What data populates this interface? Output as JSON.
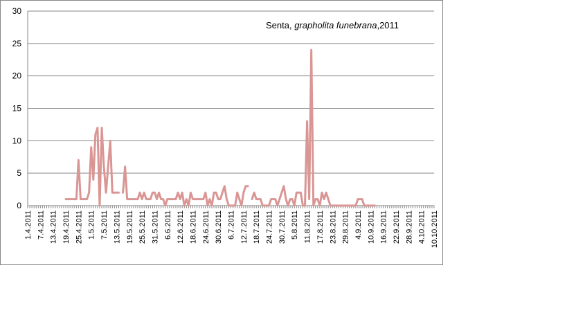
{
  "chart_data": {
    "type": "line",
    "title_parts": [
      "Senta, ",
      "grapholita funebrana",
      ",2011"
    ],
    "ylim": [
      0,
      30
    ],
    "yticks": [
      0,
      5,
      10,
      15,
      20,
      25,
      30
    ],
    "xlim": [
      "1.4.2011",
      "10.10.2011"
    ],
    "xtick_labels": [
      "1.4.2011",
      "7.4.2011",
      "13.4.2011",
      "19.4.2011",
      "25.4.2011",
      "1.5.2011",
      "7.5.2011",
      "13.5.2011",
      "19.5.2011",
      "25.5.2011",
      "31.5.2011",
      "6.6.2011",
      "12.6.2011",
      "18.6.2011",
      "24.6.2011",
      "30.6.2011",
      "6.7.2011",
      "12.7.2011",
      "18.7.2011",
      "24.7.2011",
      "30.7.2011",
      "5.8.2011",
      "11.8.2011",
      "17.8.2011",
      "23.8.2011",
      "29.8.2011",
      "4.9.2011",
      "10.9.2011",
      "16.9.2011",
      "22.9.2011",
      "28.9.2011",
      "4.10.2011",
      "10.10.2011"
    ],
    "grid": true,
    "legend": "none",
    "series": [
      {
        "color": "#d99694",
        "points": [
          [
            "19.4.2011",
            1
          ],
          [
            "20.4.2011",
            1
          ],
          [
            "21.4.2011",
            1
          ],
          [
            "22.4.2011",
            1
          ],
          [
            "23.4.2011",
            1
          ],
          [
            "24.4.2011",
            1
          ],
          [
            "25.4.2011",
            7
          ],
          [
            "26.4.2011",
            1
          ],
          [
            "27.4.2011",
            1
          ],
          [
            "28.4.2011",
            1
          ],
          [
            "29.4.2011",
            1
          ],
          [
            "30.4.2011",
            2
          ],
          [
            "1.5.2011",
            9
          ],
          [
            "2.5.2011",
            4
          ],
          [
            "3.5.2011",
            11
          ],
          [
            "4.5.2011",
            12
          ],
          [
            "5.5.2011",
            0
          ],
          [
            "6.5.2011",
            12
          ],
          [
            "7.5.2011",
            6
          ],
          [
            "8.5.2011",
            2
          ],
          [
            "9.5.2011",
            6
          ],
          [
            "10.5.2011",
            10
          ],
          [
            "11.5.2011",
            2
          ],
          [
            "12.5.2011",
            2
          ],
          [
            "13.5.2011",
            2
          ],
          [
            "14.5.2011",
            2
          ],
          [
            "16.5.2011",
            2
          ],
          [
            "17.5.2011",
            6
          ],
          [
            "18.5.2011",
            1
          ],
          [
            "19.5.2011",
            1
          ],
          [
            "20.5.2011",
            1
          ],
          [
            "21.5.2011",
            1
          ],
          [
            "22.5.2011",
            1
          ],
          [
            "23.5.2011",
            1
          ],
          [
            "24.5.2011",
            2
          ],
          [
            "25.5.2011",
            1
          ],
          [
            "26.5.2011",
            2
          ],
          [
            "27.5.2011",
            1
          ],
          [
            "28.5.2011",
            1
          ],
          [
            "29.5.2011",
            1
          ],
          [
            "30.5.2011",
            2
          ],
          [
            "31.5.2011",
            2
          ],
          [
            "1.6.2011",
            1
          ],
          [
            "2.6.2011",
            2
          ],
          [
            "3.6.2011",
            1
          ],
          [
            "4.6.2011",
            1
          ],
          [
            "5.6.2011",
            0
          ],
          [
            "6.6.2011",
            1
          ],
          [
            "7.6.2011",
            1
          ],
          [
            "8.6.2011",
            1
          ],
          [
            "9.6.2011",
            1
          ],
          [
            "10.6.2011",
            1
          ],
          [
            "11.6.2011",
            2
          ],
          [
            "12.6.2011",
            1
          ],
          [
            "13.6.2011",
            2
          ],
          [
            "14.6.2011",
            0
          ],
          [
            "15.6.2011",
            1
          ],
          [
            "16.6.2011",
            0
          ],
          [
            "17.6.2011",
            2
          ],
          [
            "18.6.2011",
            1
          ],
          [
            "19.6.2011",
            1
          ],
          [
            "20.6.2011",
            1
          ],
          [
            "21.6.2011",
            1
          ],
          [
            "22.6.2011",
            1
          ],
          [
            "23.6.2011",
            1
          ],
          [
            "24.6.2011",
            2
          ],
          [
            "25.6.2011",
            0
          ],
          [
            "26.6.2011",
            1
          ],
          [
            "27.6.2011",
            0
          ],
          [
            "28.6.2011",
            2
          ],
          [
            "29.6.2011",
            2
          ],
          [
            "30.6.2011",
            1
          ],
          [
            "1.7.2011",
            1
          ],
          [
            "2.7.2011",
            2
          ],
          [
            "3.7.2011",
            3
          ],
          [
            "4.7.2011",
            1
          ],
          [
            "5.7.2011",
            0
          ],
          [
            "6.7.2011",
            0
          ],
          [
            "7.7.2011",
            0
          ],
          [
            "8.7.2011",
            0
          ],
          [
            "9.7.2011",
            2
          ],
          [
            "10.7.2011",
            1
          ],
          [
            "11.7.2011",
            0
          ],
          [
            "12.7.2011",
            2
          ],
          [
            "13.7.2011",
            3
          ],
          [
            "14.7.2011",
            3
          ],
          [
            "16.7.2011",
            1
          ],
          [
            "17.7.2011",
            2
          ],
          [
            "18.7.2011",
            1
          ],
          [
            "19.7.2011",
            1
          ],
          [
            "20.7.2011",
            1
          ],
          [
            "21.7.2011",
            0
          ],
          [
            "22.7.2011",
            0
          ],
          [
            "23.7.2011",
            0
          ],
          [
            "24.7.2011",
            0
          ],
          [
            "25.7.2011",
            1
          ],
          [
            "26.7.2011",
            1
          ],
          [
            "27.7.2011",
            1
          ],
          [
            "28.7.2011",
            0
          ],
          [
            "29.7.2011",
            1
          ],
          [
            "30.7.2011",
            2
          ],
          [
            "31.7.2011",
            3
          ],
          [
            "1.8.2011",
            1
          ],
          [
            "2.8.2011",
            0
          ],
          [
            "3.8.2011",
            1
          ],
          [
            "4.8.2011",
            1
          ],
          [
            "5.8.2011",
            0
          ],
          [
            "6.8.2011",
            2
          ],
          [
            "7.8.2011",
            2
          ],
          [
            "8.8.2011",
            2
          ],
          [
            "9.8.2011",
            0
          ],
          [
            "10.8.2011",
            0
          ],
          [
            "11.8.2011",
            13
          ],
          [
            "12.8.2011",
            1
          ],
          [
            "13.8.2011",
            24
          ],
          [
            "14.8.2011",
            0
          ],
          [
            "15.8.2011",
            1
          ],
          [
            "16.8.2011",
            1
          ],
          [
            "17.8.2011",
            0
          ],
          [
            "18.8.2011",
            2
          ],
          [
            "19.8.2011",
            1
          ],
          [
            "20.8.2011",
            2
          ],
          [
            "21.8.2011",
            1
          ],
          [
            "22.8.2011",
            0
          ],
          [
            "23.8.2011",
            0
          ],
          [
            "24.8.2011",
            0
          ],
          [
            "25.8.2011",
            0
          ],
          [
            "26.8.2011",
            0
          ],
          [
            "27.8.2011",
            0
          ],
          [
            "28.8.2011",
            0
          ],
          [
            "29.8.2011",
            0
          ],
          [
            "30.8.2011",
            0
          ],
          [
            "31.8.2011",
            0
          ],
          [
            "1.9.2011",
            0
          ],
          [
            "2.9.2011",
            0
          ],
          [
            "3.9.2011",
            0
          ],
          [
            "4.9.2011",
            1
          ],
          [
            "5.9.2011",
            1
          ],
          [
            "6.9.2011",
            1
          ],
          [
            "7.9.2011",
            0
          ],
          [
            "8.9.2011",
            0
          ],
          [
            "9.9.2011",
            0
          ],
          [
            "10.9.2011",
            0
          ],
          [
            "11.9.2011",
            0
          ],
          [
            "12.9.2011",
            0
          ]
        ]
      }
    ]
  }
}
